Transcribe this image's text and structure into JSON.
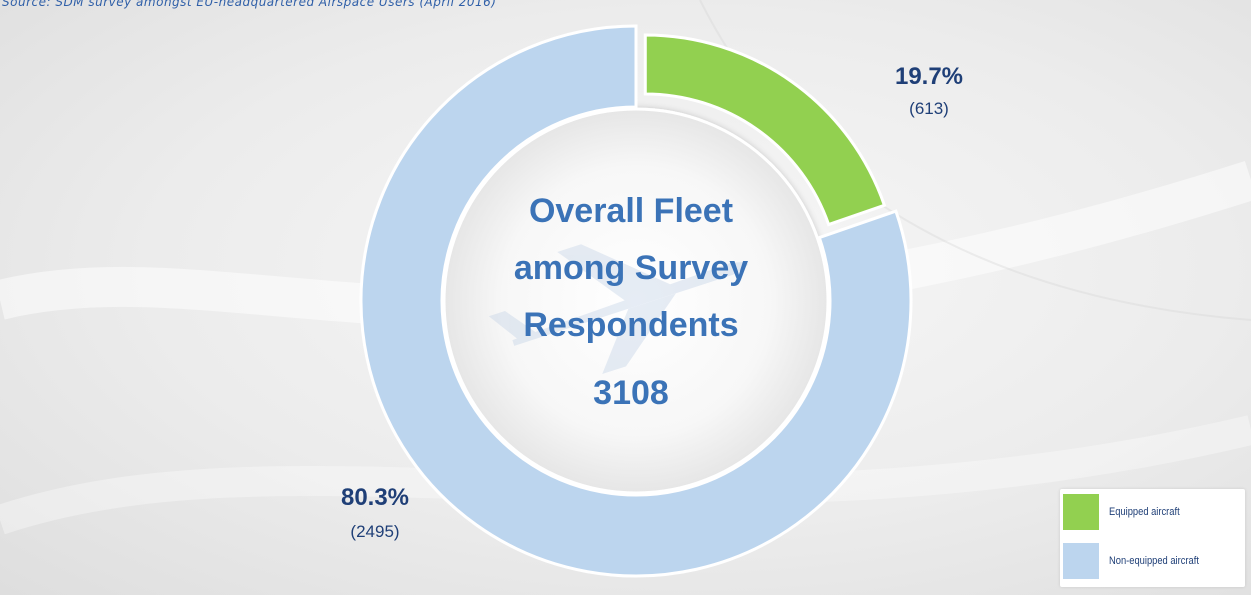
{
  "source_note": "Source: SDM survey amongst EU-headquartered Airspace Users (April 2016)",
  "colors": {
    "equipped": "#92d050",
    "non_equipped": "#bcd5ee",
    "text_dark": "#1f3f77",
    "text_accent": "#3b73b7"
  },
  "center": {
    "title_line1": "Overall Fleet",
    "title_line2": "among Survey",
    "title_line3": "Respondents",
    "total": "3108"
  },
  "chart_data": {
    "type": "pie",
    "title": "Overall Fleet among Survey Respondents",
    "total": 3108,
    "slices": [
      {
        "name": "Equipped aircraft",
        "percent": 19.7,
        "count": 613,
        "percent_label": "19.7%",
        "count_label": "(613)",
        "exploded": true
      },
      {
        "name": "Non-equipped aircraft",
        "percent": 80.3,
        "count": 2495,
        "percent_label": "80.3%",
        "count_label": "(2495)",
        "exploded": false
      }
    ],
    "legend_position": "bottom-right"
  },
  "legend": {
    "items": [
      {
        "label": "Equipped aircraft"
      },
      {
        "label": "Non-equipped aircraft"
      }
    ]
  }
}
